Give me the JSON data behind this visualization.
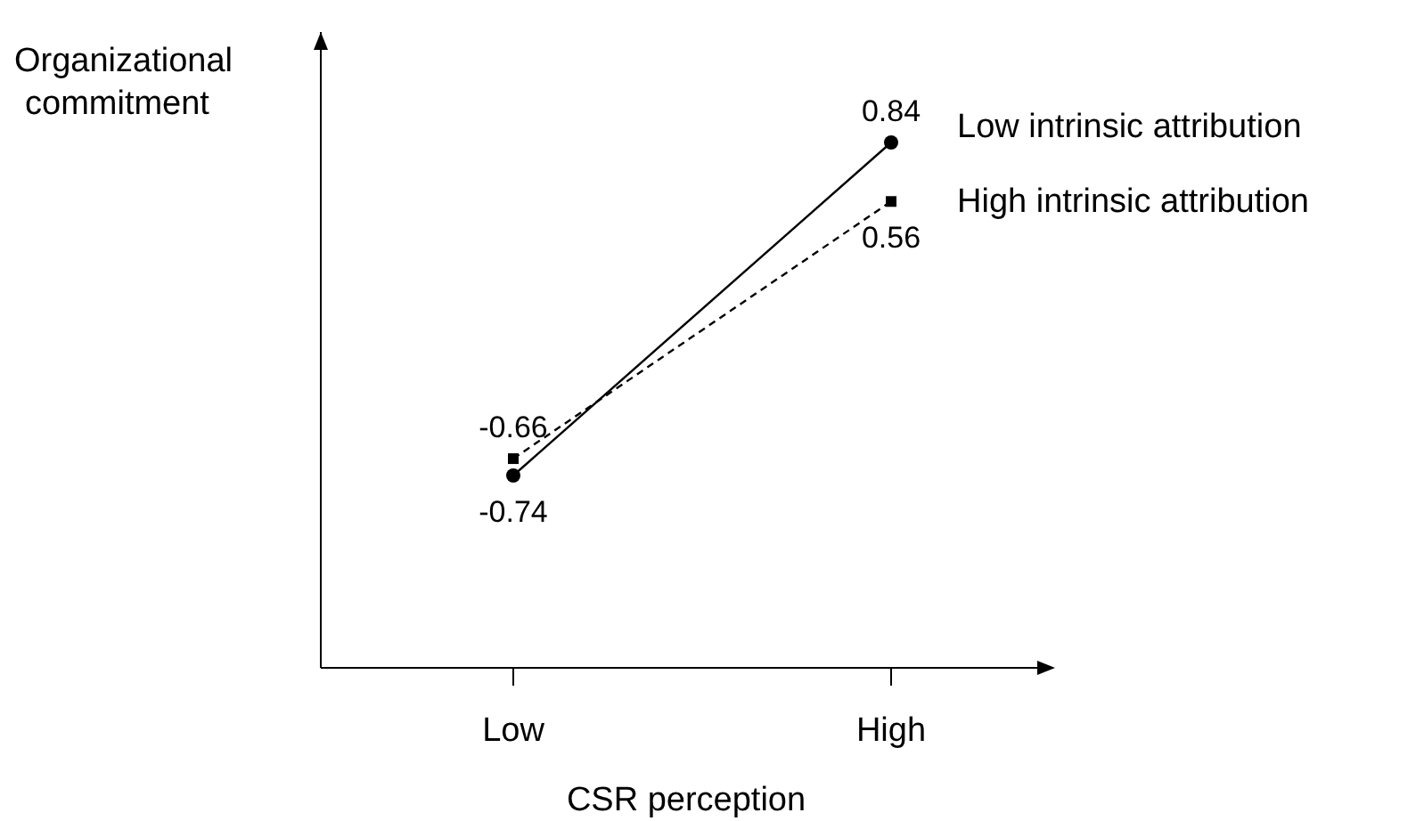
{
  "chart_data": {
    "type": "line",
    "ylabel": "Organizational commitment",
    "xlabel": "CSR perception",
    "categories": [
      "Low",
      "High"
    ],
    "data_labels": true,
    "legend": "right",
    "tick_labels": "x",
    "series": [
      {
        "name": "Low intrinsic attribution",
        "color": "#000000",
        "values": [
          -0.74,
          0.84
        ],
        "marker": "circle",
        "line_style": "solid"
      },
      {
        "name": "High intrinsic attribution",
        "color": "#000000",
        "values": [
          -0.66,
          0.56
        ],
        "marker": "square",
        "line_style": "dashed"
      }
    ]
  }
}
